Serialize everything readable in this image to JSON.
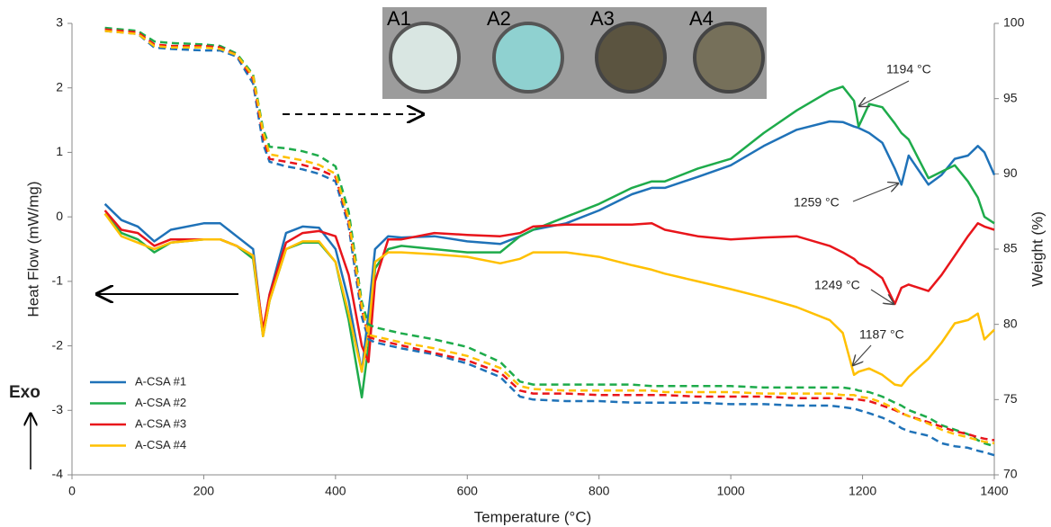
{
  "chart_data": {
    "type": "line",
    "x_label": "Temperature (°C)",
    "y_label": "Heat Flow (mW/mg)",
    "y2_label": "Weight (%)",
    "xlim": [
      0,
      1400
    ],
    "xticks": [
      0,
      200,
      400,
      600,
      800,
      1000,
      1200,
      1400
    ],
    "ylim": [
      -4,
      3
    ],
    "yticks": [
      -4,
      -3,
      -2,
      -1,
      0,
      1,
      2,
      3
    ],
    "y2lim": [
      70,
      100
    ],
    "y2ticks": [
      70,
      75,
      80,
      85,
      90,
      95,
      100
    ],
    "legend": "lower left",
    "x": [
      50,
      75,
      100,
      125,
      150,
      200,
      225,
      250,
      275,
      290,
      300,
      325,
      350,
      375,
      400,
      420,
      440,
      450,
      460,
      480,
      500,
      550,
      600,
      650,
      680,
      700,
      750,
      800,
      850,
      880,
      900,
      950,
      1000,
      1050,
      1100,
      1150,
      1170,
      1187,
      1194,
      1210,
      1230,
      1249,
      1259,
      1270,
      1300,
      1320,
      1340,
      1360,
      1375,
      1385,
      1400
    ],
    "series": [
      {
        "name": "A-CSA #1",
        "color": "#1f72b8",
        "values": [
          0.2,
          -0.05,
          -0.15,
          -0.38,
          -0.2,
          -0.1,
          -0.1,
          -0.3,
          -0.5,
          -1.8,
          -1.2,
          -0.25,
          -0.15,
          -0.17,
          -0.5,
          -1.3,
          -2.4,
          -1.5,
          -0.5,
          -0.3,
          -0.32,
          -0.3,
          -0.38,
          -0.42,
          -0.3,
          -0.2,
          -0.1,
          0.1,
          0.35,
          0.45,
          0.45,
          0.62,
          0.8,
          1.1,
          1.35,
          1.48,
          1.47,
          1.4,
          1.38,
          1.3,
          1.15,
          0.75,
          0.5,
          0.95,
          0.5,
          0.65,
          0.9,
          0.95,
          1.1,
          1.0,
          0.65
        ]
      },
      {
        "name": "A-CSA #2",
        "color": "#1eab4b",
        "values": [
          0.05,
          -0.25,
          -0.35,
          -0.55,
          -0.4,
          -0.35,
          -0.35,
          -0.45,
          -0.65,
          -1.85,
          -1.3,
          -0.5,
          -0.4,
          -0.4,
          -0.7,
          -1.6,
          -2.8,
          -2.0,
          -0.8,
          -0.5,
          -0.45,
          -0.5,
          -0.55,
          -0.55,
          -0.3,
          -0.2,
          0.0,
          0.2,
          0.45,
          0.55,
          0.55,
          0.75,
          0.9,
          1.3,
          1.65,
          1.95,
          2.02,
          1.8,
          1.4,
          1.75,
          1.7,
          1.45,
          1.3,
          1.2,
          0.6,
          0.7,
          0.8,
          0.55,
          0.3,
          0.0,
          -0.1
        ]
      },
      {
        "name": "A-CSA #3",
        "color": "#e8151b",
        "values": [
          0.1,
          -0.2,
          -0.25,
          -0.45,
          -0.35,
          -0.35,
          -0.35,
          -0.45,
          -0.6,
          -1.75,
          -1.2,
          -0.4,
          -0.25,
          -0.22,
          -0.3,
          -0.9,
          -2.0,
          -2.25,
          -1.0,
          -0.35,
          -0.35,
          -0.25,
          -0.28,
          -0.3,
          -0.25,
          -0.15,
          -0.12,
          -0.12,
          -0.12,
          -0.1,
          -0.2,
          -0.3,
          -0.35,
          -0.32,
          -0.3,
          -0.45,
          -0.55,
          -0.65,
          -0.72,
          -0.8,
          -0.95,
          -1.35,
          -1.1,
          -1.05,
          -1.15,
          -0.9,
          -0.6,
          -0.3,
          -0.1,
          -0.15,
          -0.2
        ]
      },
      {
        "name": "A-CSA #4",
        "color": "#ffc000",
        "values": [
          0.05,
          -0.3,
          -0.4,
          -0.5,
          -0.4,
          -0.35,
          -0.35,
          -0.45,
          -0.6,
          -1.85,
          -1.3,
          -0.5,
          -0.38,
          -0.38,
          -0.7,
          -1.5,
          -2.4,
          -1.8,
          -0.7,
          -0.55,
          -0.55,
          -0.58,
          -0.62,
          -0.72,
          -0.65,
          -0.55,
          -0.55,
          -0.62,
          -0.75,
          -0.82,
          -0.88,
          -1.0,
          -1.12,
          -1.25,
          -1.4,
          -1.6,
          -1.8,
          -2.45,
          -2.4,
          -2.35,
          -2.45,
          -2.6,
          -2.62,
          -2.48,
          -2.2,
          -1.95,
          -1.65,
          -1.6,
          -1.5,
          -1.9,
          -1.75
        ]
      },
      {
        "color": "#1f72b8",
        "axis": "y2",
        "dashed": true,
        "values": [
          99.5,
          99.4,
          99.3,
          98.4,
          98.3,
          98.2,
          98.2,
          97.8,
          96.0,
          92.0,
          90.8,
          90.5,
          90.3,
          90.0,
          89.5,
          86.5,
          80.5,
          79.0,
          78.8,
          78.6,
          78.4,
          78.0,
          77.4,
          76.5,
          75.2,
          75.0,
          74.9,
          74.9,
          74.8,
          74.8,
          74.8,
          74.8,
          74.7,
          74.7,
          74.6,
          74.6,
          74.5,
          74.4,
          74.3,
          74.1,
          73.8,
          73.4,
          73.1,
          72.9,
          72.6,
          72.1,
          71.9,
          71.8,
          71.6,
          71.5,
          71.3
        ]
      },
      {
        "color": "#1eab4b",
        "axis": "y2",
        "dashed": true,
        "values": [
          99.7,
          99.6,
          99.5,
          98.8,
          98.7,
          98.6,
          98.5,
          98.0,
          96.6,
          93.0,
          91.8,
          91.7,
          91.5,
          91.2,
          90.5,
          87.5,
          81.5,
          80.0,
          79.8,
          79.6,
          79.4,
          79.0,
          78.5,
          77.5,
          76.2,
          76.0,
          76.0,
          76.0,
          76.0,
          75.9,
          75.9,
          75.9,
          75.9,
          75.8,
          75.8,
          75.8,
          75.8,
          75.7,
          75.6,
          75.5,
          75.2,
          74.8,
          74.6,
          74.3,
          73.8,
          73.3,
          73.0,
          72.7,
          72.3,
          72.1,
          71.9
        ]
      },
      {
        "color": "#e8151b",
        "axis": "y2",
        "dashed": true,
        "values": [
          99.6,
          99.5,
          99.4,
          98.6,
          98.5,
          98.5,
          98.4,
          97.9,
          96.3,
          92.5,
          91.0,
          90.8,
          90.6,
          90.3,
          89.8,
          86.8,
          81.0,
          79.2,
          79.0,
          78.8,
          78.6,
          78.1,
          77.6,
          76.8,
          75.6,
          75.4,
          75.4,
          75.3,
          75.3,
          75.3,
          75.3,
          75.2,
          75.2,
          75.2,
          75.1,
          75.1,
          75.1,
          75.0,
          75.0,
          74.9,
          74.6,
          74.3,
          74.1,
          73.9,
          73.5,
          73.2,
          72.9,
          72.7,
          72.5,
          72.4,
          72.3
        ]
      },
      {
        "color": "#ffc000",
        "axis": "y2",
        "dashed": true,
        "values": [
          99.5,
          99.4,
          99.3,
          98.5,
          98.4,
          98.4,
          98.3,
          97.9,
          96.5,
          92.8,
          91.3,
          91.1,
          90.9,
          90.6,
          90.0,
          87.0,
          81.2,
          79.3,
          79.2,
          79.0,
          78.8,
          78.4,
          77.9,
          77.1,
          75.9,
          75.7,
          75.6,
          75.6,
          75.6,
          75.6,
          75.5,
          75.5,
          75.5,
          75.4,
          75.4,
          75.4,
          75.3,
          75.3,
          75.2,
          75.1,
          74.8,
          74.4,
          74.1,
          73.9,
          73.4,
          73.0,
          72.7,
          72.5,
          72.3,
          72.2,
          72.1
        ]
      }
    ],
    "annotations": [
      "1194 °C",
      "1259 °C",
      "1249 °C",
      "1187 °C"
    ],
    "exo_label": "Exo",
    "inset_labels": [
      "A1",
      "A2",
      "A3",
      "A4"
    ]
  }
}
